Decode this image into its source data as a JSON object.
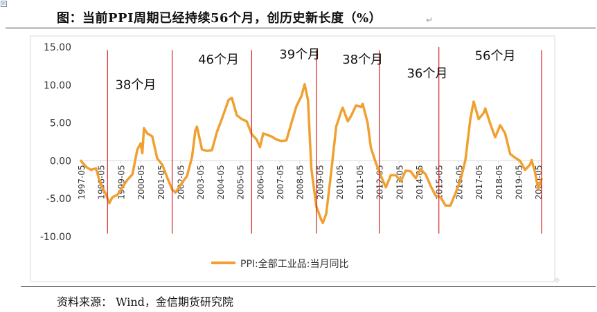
{
  "document": {
    "title": "图：当前PPI周期已经持续56个月，创历史新长度（%）",
    "source": "资料来源：  Wind，金信期货研究院"
  },
  "colors": {
    "series": "#F0A030",
    "cycle_line": "#D42020",
    "axis": "#D9D9D9",
    "text": "#333333"
  },
  "chart_data": {
    "type": "line",
    "ylim": [
      -10,
      15
    ],
    "y_ticks": [
      "15.00",
      "10.00",
      "5.00",
      "0.00",
      "-5.00",
      "-10.00"
    ],
    "x_start": "1997-05",
    "x_end": "2020-07",
    "x_tick_labels": [
      "1997-05",
      "1998-05",
      "1999-05",
      "2000-05",
      "2001-05",
      "2002-05",
      "2003-05",
      "2004-05",
      "2005-05",
      "2006-05",
      "2007-05",
      "2008-05",
      "2009-05",
      "2010-05",
      "2011-05",
      "2012-05",
      "2013-05",
      "2014-05",
      "2015-05",
      "2016-05",
      "2017-05",
      "2018-05",
      "2019-05",
      "2020-05"
    ],
    "legend": {
      "position": "bottom"
    },
    "series": [
      {
        "name": "PPI:全部工业品:当月同比",
        "points": [
          [
            "1997-05",
            0.0
          ],
          [
            "1997-08",
            -0.8
          ],
          [
            "1997-11",
            -1.2
          ],
          [
            "1998-02",
            -1.0
          ],
          [
            "1998-05",
            -3.2
          ],
          [
            "1998-08",
            -4.4
          ],
          [
            "1998-10",
            -5.6
          ],
          [
            "1998-12",
            -4.8
          ],
          [
            "1999-03",
            -4.5
          ],
          [
            "1999-06",
            -3.5
          ],
          [
            "1999-09",
            -2.5
          ],
          [
            "1999-12",
            -1.8
          ],
          [
            "2000-03",
            1.5
          ],
          [
            "2000-05",
            2.3
          ],
          [
            "2000-06",
            1.0
          ],
          [
            "2000-07",
            4.3
          ],
          [
            "2000-09",
            3.6
          ],
          [
            "2000-12",
            3.2
          ],
          [
            "2001-03",
            0.3
          ],
          [
            "2001-06",
            -0.5
          ],
          [
            "2001-09",
            -2.2
          ],
          [
            "2001-12",
            -3.8
          ],
          [
            "2002-02",
            -4.2
          ],
          [
            "2002-05",
            -3.2
          ],
          [
            "2002-09",
            -2.0
          ],
          [
            "2002-12",
            0.5
          ],
          [
            "2003-02",
            4.0
          ],
          [
            "2003-03",
            4.5
          ],
          [
            "2003-06",
            1.5
          ],
          [
            "2003-09",
            1.3
          ],
          [
            "2003-12",
            1.4
          ],
          [
            "2004-03",
            3.8
          ],
          [
            "2004-06",
            5.5
          ],
          [
            "2004-10",
            8.0
          ],
          [
            "2004-12",
            8.3
          ],
          [
            "2005-03",
            6.0
          ],
          [
            "2005-06",
            5.5
          ],
          [
            "2005-09",
            5.2
          ],
          [
            "2005-12",
            3.5
          ],
          [
            "2006-03",
            2.8
          ],
          [
            "2006-05",
            1.8
          ],
          [
            "2006-07",
            3.6
          ],
          [
            "2006-12",
            3.2
          ],
          [
            "2007-03",
            2.8
          ],
          [
            "2007-06",
            2.6
          ],
          [
            "2007-09",
            2.7
          ],
          [
            "2007-12",
            5.0
          ],
          [
            "2008-03",
            7.2
          ],
          [
            "2008-06",
            8.5
          ],
          [
            "2008-08",
            10.1
          ],
          [
            "2008-10",
            8.0
          ],
          [
            "2008-12",
            -1.0
          ],
          [
            "2009-03",
            -6.0
          ],
          [
            "2009-06",
            -7.8
          ],
          [
            "2009-07",
            -8.2
          ],
          [
            "2009-09",
            -7.0
          ],
          [
            "2009-12",
            -1.5
          ],
          [
            "2010-03",
            4.5
          ],
          [
            "2010-06",
            6.5
          ],
          [
            "2010-07",
            7.0
          ],
          [
            "2010-10",
            5.2
          ],
          [
            "2010-12",
            5.9
          ],
          [
            "2011-03",
            7.3
          ],
          [
            "2011-06",
            7.1
          ],
          [
            "2011-07",
            7.5
          ],
          [
            "2011-10",
            5.0
          ],
          [
            "2011-12",
            1.7
          ],
          [
            "2012-03",
            -0.3
          ],
          [
            "2012-06",
            -2.0
          ],
          [
            "2012-09",
            -3.5
          ],
          [
            "2012-12",
            -1.9
          ],
          [
            "2013-03",
            -1.9
          ],
          [
            "2013-06",
            -2.7
          ],
          [
            "2013-09",
            -1.3
          ],
          [
            "2013-12",
            -1.4
          ],
          [
            "2014-03",
            -2.3
          ],
          [
            "2014-06",
            -1.1
          ],
          [
            "2014-09",
            -1.8
          ],
          [
            "2014-12",
            -3.3
          ],
          [
            "2015-03",
            -4.6
          ],
          [
            "2015-06",
            -4.8
          ],
          [
            "2015-09",
            -5.9
          ],
          [
            "2015-12",
            -5.9
          ],
          [
            "2016-03",
            -4.3
          ],
          [
            "2016-06",
            -2.6
          ],
          [
            "2016-09",
            0.1
          ],
          [
            "2016-12",
            5.5
          ],
          [
            "2017-02",
            7.8
          ],
          [
            "2017-05",
            5.5
          ],
          [
            "2017-08",
            6.3
          ],
          [
            "2017-09",
            6.9
          ],
          [
            "2017-12",
            4.9
          ],
          [
            "2018-03",
            3.1
          ],
          [
            "2018-06",
            4.7
          ],
          [
            "2018-09",
            3.6
          ],
          [
            "2018-12",
            0.9
          ],
          [
            "2019-03",
            0.4
          ],
          [
            "2019-06",
            0.0
          ],
          [
            "2019-09",
            -1.2
          ],
          [
            "2019-12",
            -0.5
          ],
          [
            "2020-01",
            0.1
          ],
          [
            "2020-03",
            -1.5
          ],
          [
            "2020-05",
            -3.7
          ],
          [
            "2020-07",
            -2.4
          ]
        ]
      }
    ],
    "annotations": [
      {
        "text": "38个月",
        "date": "2000-02",
        "value": 9.5
      },
      {
        "text": "46个月",
        "date": "2004-04",
        "value": 12.8
      },
      {
        "text": "39个月",
        "date": "2008-05",
        "value": 13.5
      },
      {
        "text": "38个月",
        "date": "2011-07",
        "value": 12.8
      },
      {
        "text": "36个月",
        "date": "2014-10",
        "value": 11.0
      },
      {
        "text": "56个月",
        "date": "2018-03",
        "value": 13.3
      }
    ],
    "cycle_boundaries": [
      {
        "date": "1998-09",
        "top": 14.6,
        "bottom": -9.6
      },
      {
        "date": "2001-12",
        "top": 14.6,
        "bottom": -9.6
      },
      {
        "date": "2005-12",
        "top": 14.6,
        "bottom": -9.6
      },
      {
        "date": "2009-03",
        "top": 14.6,
        "bottom": -9.6
      },
      {
        "date": "2012-05",
        "top": 14.6,
        "bottom": -9.6
      },
      {
        "date": "2015-05",
        "top": 15.0,
        "bottom": -9.6
      },
      {
        "date": "2020-07",
        "top": 14.6,
        "bottom": -9.6
      }
    ]
  }
}
